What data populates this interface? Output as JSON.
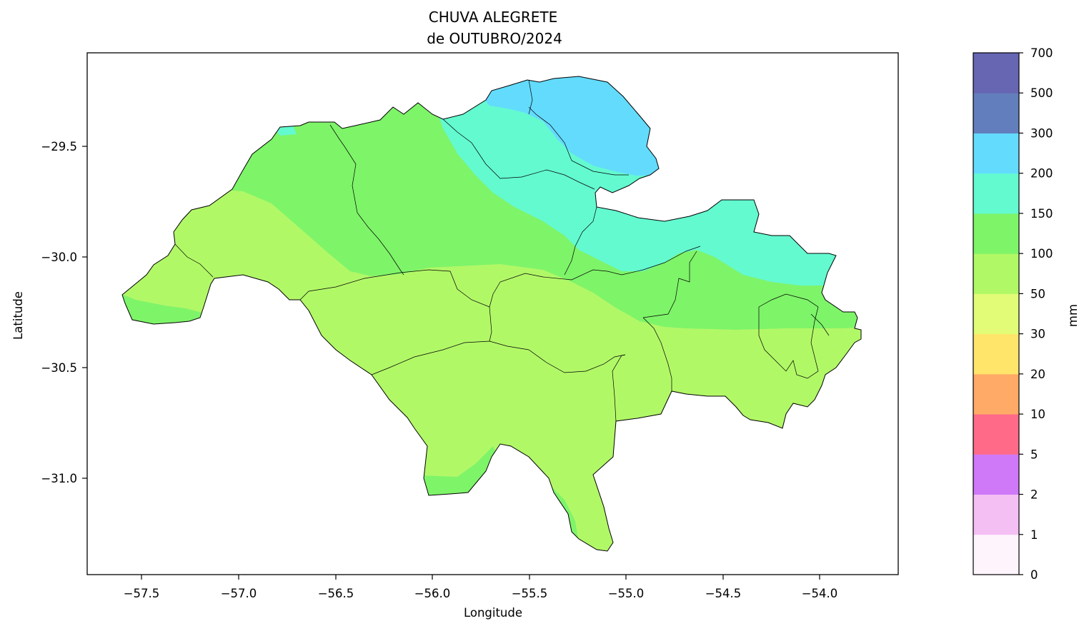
{
  "title": {
    "line1": "CHUVA ALEGRETE",
    "line2": "de OUTUBRO/2024"
  },
  "axes": {
    "xlabel": "Longitude",
    "ylabel": "Latitude",
    "x_ticks": [
      "−57.5",
      "−57.0",
      "−56.5",
      "−56.0",
      "−55.5",
      "−55.0",
      "−54.5",
      "−54.0"
    ],
    "y_ticks": [
      "−29.5",
      "−30.0",
      "−30.5",
      "−31.0"
    ]
  },
  "colorbar": {
    "label": "mm",
    "ticks": [
      "0",
      "1",
      "2",
      "5",
      "10",
      "20",
      "30",
      "50",
      "100",
      "150",
      "200",
      "300",
      "500",
      "700"
    ],
    "colors": [
      "#fef5fc",
      "#f4c0f4",
      "#cf79f9",
      "#ff6a89",
      "#ffaa66",
      "#ffe66a",
      "#e2fc78",
      "#b1f867",
      "#7ef469",
      "#63fad0",
      "#63dbfd",
      "#637ebc",
      "#6666b3"
    ]
  },
  "chart_data": {
    "type": "heatmap",
    "title": "CHUVA ALEGRETE de OUTUBRO/2024",
    "xlabel": "Longitude",
    "ylabel": "Latitude",
    "xlim": [
      -57.78,
      -53.56
    ],
    "ylim": [
      -31.43,
      -29.08
    ],
    "colorbar_label": "mm",
    "levels": [
      0,
      1,
      2,
      5,
      10,
      20,
      30,
      50,
      100,
      150,
      200,
      300,
      500,
      700
    ],
    "zones": [
      {
        "range": "50-100",
        "color": "#b1f867",
        "region": "southwest, south and southeast (majority)"
      },
      {
        "range": "100-150",
        "color": "#7ef469",
        "region": "central-north band and eastern strip"
      },
      {
        "range": "150-200",
        "color": "#63fad0",
        "region": "north-east"
      },
      {
        "range": "200-300",
        "color": "#63dbfd",
        "region": "far north"
      }
    ]
  }
}
